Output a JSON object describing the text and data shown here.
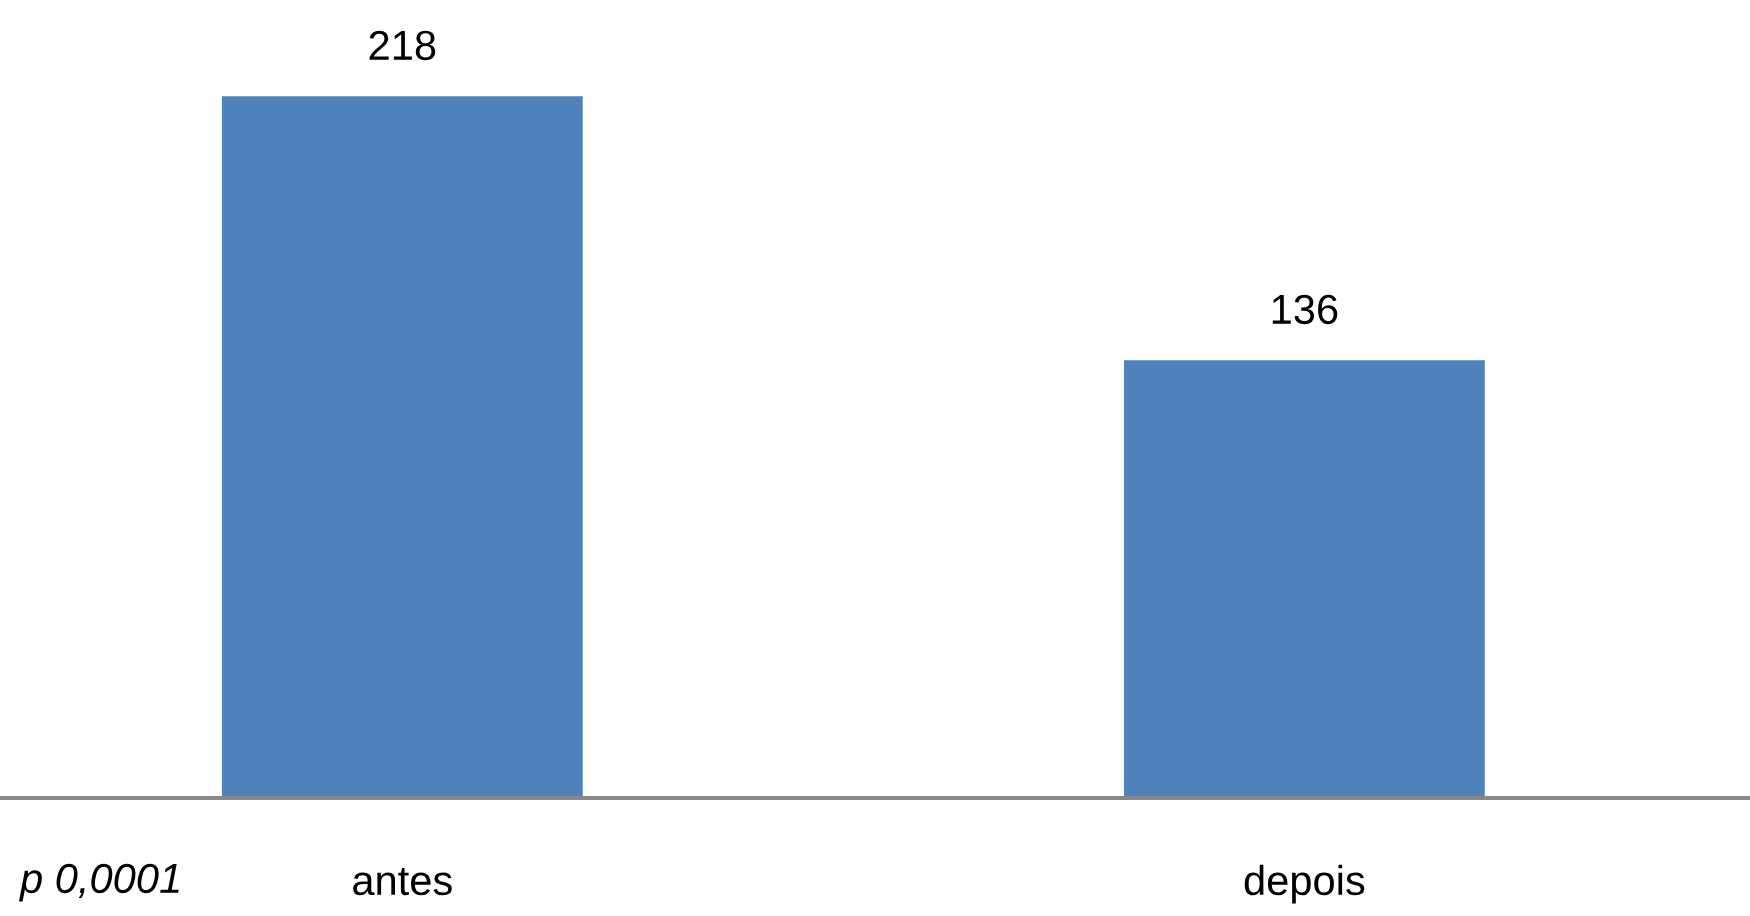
{
  "chart_data": {
    "type": "bar",
    "categories": [
      "antes",
      "depois"
    ],
    "values": [
      218,
      136
    ],
    "color": "#4f81bd",
    "data_labels": true,
    "annotations": [
      "p 0,0001"
    ]
  }
}
